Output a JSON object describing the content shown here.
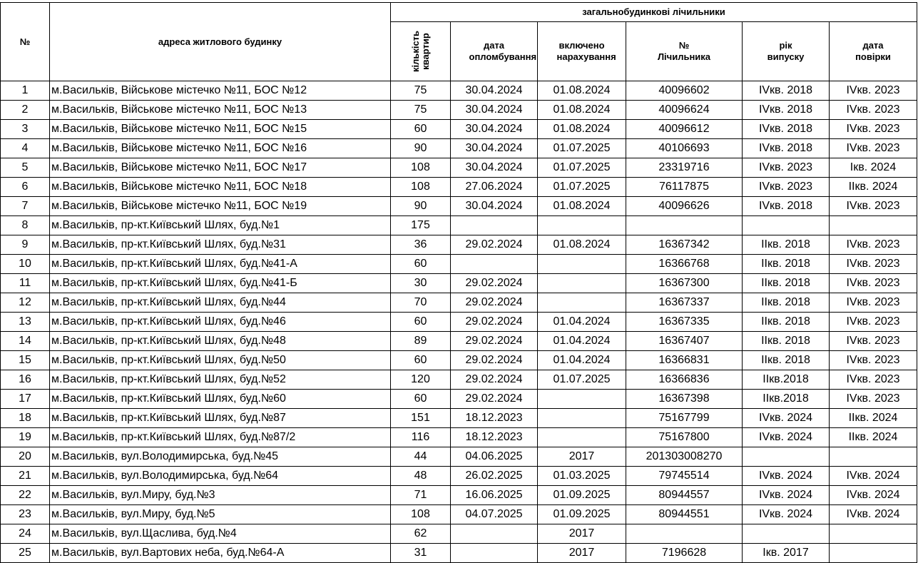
{
  "header": {
    "num": "№",
    "address": "адреса житлового будинку",
    "group": "загальнобудинкові лічильники",
    "apartments": "кількість квартир",
    "seal_date": "дата опломбування",
    "billing": "включено нарахування",
    "meter_no": "№ Лічильника",
    "year": "рік випуску",
    "verify": "дата повірки"
  },
  "rows": [
    [
      "1",
      "м.Васильків, Військове містечко №11, БОС №12",
      "75",
      "30.04.2024",
      "01.08.2024",
      "40096602",
      "IVкв. 2018",
      "IVкв. 2023"
    ],
    [
      "2",
      "м.Васильків, Військове містечко №11, БОС №13",
      "75",
      "30.04.2024",
      "01.08.2024",
      "40096624",
      "IVкв. 2018",
      "IVкв. 2023"
    ],
    [
      "3",
      "м.Васильків, Військове містечко №11, БОС №15",
      "60",
      "30.04.2024",
      "01.08.2024",
      "40096612",
      "IVкв. 2018",
      "IVкв. 2023"
    ],
    [
      "4",
      "м.Васильків, Військове містечко №11, БОС №16",
      "90",
      "30.04.2024",
      "01.07.2025",
      "40106693",
      "IVкв. 2018",
      "IVкв. 2023"
    ],
    [
      "5",
      "м.Васильків, Військове містечко №11, БОС №17",
      "108",
      "30.04.2024",
      "01.07.2025",
      "23319716",
      "IVкв. 2023",
      "Iкв. 2024"
    ],
    [
      "6",
      "м.Васильків, Військове містечко №11, БОС №18",
      "108",
      "27.06.2024",
      "01.07.2025",
      "76117875",
      "IVкв. 2023",
      "IIкв. 2024"
    ],
    [
      "7",
      "м.Васильків, Військове містечко №11, БОС №19",
      "90",
      "30.04.2024",
      "01.08.2024",
      "40096626",
      "IVкв. 2018",
      "IVкв. 2023"
    ],
    [
      "8",
      "м.Васильків, пр-кт.Київський Шлях, буд.№1",
      "175",
      "",
      "",
      "",
      "",
      ""
    ],
    [
      "9",
      "м.Васильків, пр-кт.Київський Шлях, буд.№31",
      "36",
      "29.02.2024",
      "01.08.2024",
      "16367342",
      "IIкв. 2018",
      "IVкв. 2023"
    ],
    [
      "10",
      "м.Васильків, пр-кт.Київський Шлях, буд.№41-А",
      "60",
      "",
      "",
      "16366768",
      "IIкв. 2018",
      "IVкв. 2023"
    ],
    [
      "11",
      "м.Васильків, пр-кт.Київський Шлях, буд.№41-Б",
      "30",
      "29.02.2024",
      "",
      "16367300",
      "IIкв. 2018",
      "IVкв. 2023"
    ],
    [
      "12",
      "м.Васильків, пр-кт.Київський Шлях, буд.№44",
      "70",
      "29.02.2024",
      "",
      "16367337",
      "IIкв. 2018",
      "IVкв. 2023"
    ],
    [
      "13",
      "м.Васильків, пр-кт.Київський Шлях, буд.№46",
      "60",
      "29.02.2024",
      "01.04.2024",
      "16367335",
      "IIкв. 2018",
      "IVкв. 2023"
    ],
    [
      "14",
      "м.Васильків, пр-кт.Київський Шлях, буд.№48",
      "89",
      "29.02.2024",
      "01.04.2024",
      "16367407",
      "IIкв. 2018",
      "IVкв. 2023"
    ],
    [
      "15",
      "м.Васильків, пр-кт.Київський Шлях, буд.№50",
      "60",
      "29.02.2024",
      "01.04.2024",
      "16366831",
      "IIкв. 2018",
      "IVкв. 2023"
    ],
    [
      "16",
      "м.Васильків, пр-кт.Київський Шлях, буд.№52",
      "120",
      "29.02.2024",
      "01.07.2025",
      "16366836",
      "IIкв.2018",
      "IVкв. 2023"
    ],
    [
      "17",
      "м.Васильків, пр-кт.Київський Шлях, буд.№60",
      "60",
      "29.02.2024",
      "",
      "16367398",
      "IIкв.2018",
      "IVкв. 2023"
    ],
    [
      "18",
      "м.Васильків, пр-кт.Київський Шлях, буд.№87",
      "151",
      "18.12.2023",
      "",
      "75167799",
      "IVкв. 2024",
      "IIкв. 2024"
    ],
    [
      "19",
      "м.Васильків, пр-кт.Київський Шлях, буд.№87/2",
      "116",
      "18.12.2023",
      "",
      "75167800",
      "IVкв. 2024",
      "IIкв. 2024"
    ],
    [
      "20",
      "м.Васильків, вул.Володимирська, буд.№45",
      "44",
      "04.06.2025",
      "2017",
      "201303008270",
      "",
      ""
    ],
    [
      "21",
      "м.Васильків, вул.Володимирська, буд.№64",
      "48",
      "26.02.2025",
      "01.03.2025",
      "79745514",
      "IVкв. 2024",
      "IVкв. 2024"
    ],
    [
      "22",
      "м.Васильків, вул.Миру, буд.№3",
      "71",
      "16.06.2025",
      "01.09.2025",
      "80944557",
      "IVкв. 2024",
      "IVкв. 2024"
    ],
    [
      "23",
      "м.Васильків, вул.Миру, буд.№5",
      "108",
      "04.07.2025",
      "01.09.2025",
      "80944551",
      "IVкв. 2024",
      "IVкв. 2024"
    ],
    [
      "24",
      "м.Васильків, вул.Щаслива, буд.№4",
      "62",
      "",
      "2017",
      "",
      "",
      ""
    ],
    [
      "25",
      "м.Васильків, вул.Вартових неба, буд.№64-А",
      "31",
      "",
      "2017",
      "7196628",
      "Iкв. 2017",
      ""
    ]
  ]
}
